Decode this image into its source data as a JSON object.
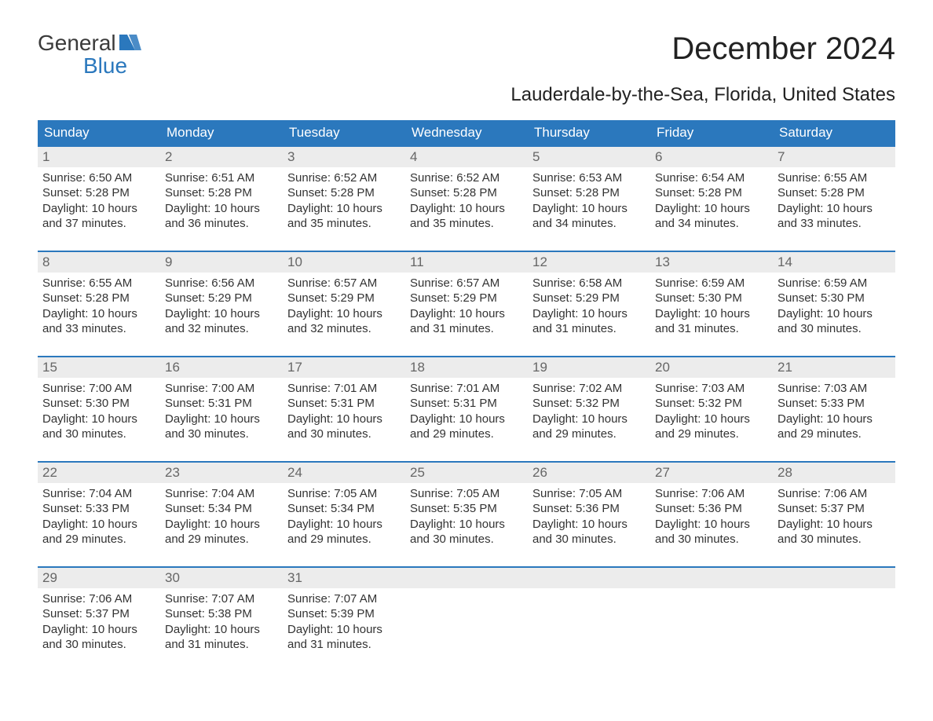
{
  "logo": {
    "line1": "General",
    "line2": "Blue",
    "flag_color": "#2b78bd"
  },
  "title": "December 2024",
  "location": "Lauderdale-by-the-Sea, Florida, United States",
  "colors": {
    "header_bg": "#2b78bd",
    "header_text": "#ffffff",
    "daynum_bg": "#ececec",
    "daynum_text": "#666666",
    "body_bg": "#ffffff",
    "text": "#333333",
    "week_border": "#2b78bd"
  },
  "layout": {
    "columns": 7,
    "rows": 5,
    "type": "calendar"
  },
  "day_headers": [
    "Sunday",
    "Monday",
    "Tuesday",
    "Wednesday",
    "Thursday",
    "Friday",
    "Saturday"
  ],
  "weeks": [
    [
      {
        "num": "1",
        "sunrise": "Sunrise: 6:50 AM",
        "sunset": "Sunset: 5:28 PM",
        "dl1": "Daylight: 10 hours",
        "dl2": "and 37 minutes."
      },
      {
        "num": "2",
        "sunrise": "Sunrise: 6:51 AM",
        "sunset": "Sunset: 5:28 PM",
        "dl1": "Daylight: 10 hours",
        "dl2": "and 36 minutes."
      },
      {
        "num": "3",
        "sunrise": "Sunrise: 6:52 AM",
        "sunset": "Sunset: 5:28 PM",
        "dl1": "Daylight: 10 hours",
        "dl2": "and 35 minutes."
      },
      {
        "num": "4",
        "sunrise": "Sunrise: 6:52 AM",
        "sunset": "Sunset: 5:28 PM",
        "dl1": "Daylight: 10 hours",
        "dl2": "and 35 minutes."
      },
      {
        "num": "5",
        "sunrise": "Sunrise: 6:53 AM",
        "sunset": "Sunset: 5:28 PM",
        "dl1": "Daylight: 10 hours",
        "dl2": "and 34 minutes."
      },
      {
        "num": "6",
        "sunrise": "Sunrise: 6:54 AM",
        "sunset": "Sunset: 5:28 PM",
        "dl1": "Daylight: 10 hours",
        "dl2": "and 34 minutes."
      },
      {
        "num": "7",
        "sunrise": "Sunrise: 6:55 AM",
        "sunset": "Sunset: 5:28 PM",
        "dl1": "Daylight: 10 hours",
        "dl2": "and 33 minutes."
      }
    ],
    [
      {
        "num": "8",
        "sunrise": "Sunrise: 6:55 AM",
        "sunset": "Sunset: 5:28 PM",
        "dl1": "Daylight: 10 hours",
        "dl2": "and 33 minutes."
      },
      {
        "num": "9",
        "sunrise": "Sunrise: 6:56 AM",
        "sunset": "Sunset: 5:29 PM",
        "dl1": "Daylight: 10 hours",
        "dl2": "and 32 minutes."
      },
      {
        "num": "10",
        "sunrise": "Sunrise: 6:57 AM",
        "sunset": "Sunset: 5:29 PM",
        "dl1": "Daylight: 10 hours",
        "dl2": "and 32 minutes."
      },
      {
        "num": "11",
        "sunrise": "Sunrise: 6:57 AM",
        "sunset": "Sunset: 5:29 PM",
        "dl1": "Daylight: 10 hours",
        "dl2": "and 31 minutes."
      },
      {
        "num": "12",
        "sunrise": "Sunrise: 6:58 AM",
        "sunset": "Sunset: 5:29 PM",
        "dl1": "Daylight: 10 hours",
        "dl2": "and 31 minutes."
      },
      {
        "num": "13",
        "sunrise": "Sunrise: 6:59 AM",
        "sunset": "Sunset: 5:30 PM",
        "dl1": "Daylight: 10 hours",
        "dl2": "and 31 minutes."
      },
      {
        "num": "14",
        "sunrise": "Sunrise: 6:59 AM",
        "sunset": "Sunset: 5:30 PM",
        "dl1": "Daylight: 10 hours",
        "dl2": "and 30 minutes."
      }
    ],
    [
      {
        "num": "15",
        "sunrise": "Sunrise: 7:00 AM",
        "sunset": "Sunset: 5:30 PM",
        "dl1": "Daylight: 10 hours",
        "dl2": "and 30 minutes."
      },
      {
        "num": "16",
        "sunrise": "Sunrise: 7:00 AM",
        "sunset": "Sunset: 5:31 PM",
        "dl1": "Daylight: 10 hours",
        "dl2": "and 30 minutes."
      },
      {
        "num": "17",
        "sunrise": "Sunrise: 7:01 AM",
        "sunset": "Sunset: 5:31 PM",
        "dl1": "Daylight: 10 hours",
        "dl2": "and 30 minutes."
      },
      {
        "num": "18",
        "sunrise": "Sunrise: 7:01 AM",
        "sunset": "Sunset: 5:31 PM",
        "dl1": "Daylight: 10 hours",
        "dl2": "and 29 minutes."
      },
      {
        "num": "19",
        "sunrise": "Sunrise: 7:02 AM",
        "sunset": "Sunset: 5:32 PM",
        "dl1": "Daylight: 10 hours",
        "dl2": "and 29 minutes."
      },
      {
        "num": "20",
        "sunrise": "Sunrise: 7:03 AM",
        "sunset": "Sunset: 5:32 PM",
        "dl1": "Daylight: 10 hours",
        "dl2": "and 29 minutes."
      },
      {
        "num": "21",
        "sunrise": "Sunrise: 7:03 AM",
        "sunset": "Sunset: 5:33 PM",
        "dl1": "Daylight: 10 hours",
        "dl2": "and 29 minutes."
      }
    ],
    [
      {
        "num": "22",
        "sunrise": "Sunrise: 7:04 AM",
        "sunset": "Sunset: 5:33 PM",
        "dl1": "Daylight: 10 hours",
        "dl2": "and 29 minutes."
      },
      {
        "num": "23",
        "sunrise": "Sunrise: 7:04 AM",
        "sunset": "Sunset: 5:34 PM",
        "dl1": "Daylight: 10 hours",
        "dl2": "and 29 minutes."
      },
      {
        "num": "24",
        "sunrise": "Sunrise: 7:05 AM",
        "sunset": "Sunset: 5:34 PM",
        "dl1": "Daylight: 10 hours",
        "dl2": "and 29 minutes."
      },
      {
        "num": "25",
        "sunrise": "Sunrise: 7:05 AM",
        "sunset": "Sunset: 5:35 PM",
        "dl1": "Daylight: 10 hours",
        "dl2": "and 30 minutes."
      },
      {
        "num": "26",
        "sunrise": "Sunrise: 7:05 AM",
        "sunset": "Sunset: 5:36 PM",
        "dl1": "Daylight: 10 hours",
        "dl2": "and 30 minutes."
      },
      {
        "num": "27",
        "sunrise": "Sunrise: 7:06 AM",
        "sunset": "Sunset: 5:36 PM",
        "dl1": "Daylight: 10 hours",
        "dl2": "and 30 minutes."
      },
      {
        "num": "28",
        "sunrise": "Sunrise: 7:06 AM",
        "sunset": "Sunset: 5:37 PM",
        "dl1": "Daylight: 10 hours",
        "dl2": "and 30 minutes."
      }
    ],
    [
      {
        "num": "29",
        "sunrise": "Sunrise: 7:06 AM",
        "sunset": "Sunset: 5:37 PM",
        "dl1": "Daylight: 10 hours",
        "dl2": "and 30 minutes."
      },
      {
        "num": "30",
        "sunrise": "Sunrise: 7:07 AM",
        "sunset": "Sunset: 5:38 PM",
        "dl1": "Daylight: 10 hours",
        "dl2": "and 31 minutes."
      },
      {
        "num": "31",
        "sunrise": "Sunrise: 7:07 AM",
        "sunset": "Sunset: 5:39 PM",
        "dl1": "Daylight: 10 hours",
        "dl2": "and 31 minutes."
      },
      null,
      null,
      null,
      null
    ]
  ]
}
